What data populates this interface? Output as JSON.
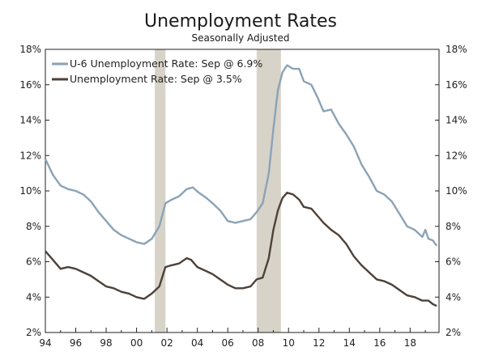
{
  "chart_data": {
    "type": "line",
    "title": "Unemployment Rates",
    "subtitle": "Seasonally Adjusted",
    "xlabel": "",
    "ylabel": "",
    "xlim": [
      1994.0,
      2019.9
    ],
    "ylim": [
      2,
      18
    ],
    "x_ticks": [
      1994,
      1996,
      1998,
      2000,
      2002,
      2004,
      2006,
      2008,
      2010,
      2012,
      2014,
      2016,
      2018
    ],
    "x_tick_labels": [
      "94",
      "96",
      "98",
      "00",
      "02",
      "04",
      "06",
      "08",
      "10",
      "12",
      "14",
      "16",
      "18"
    ],
    "y_ticks": [
      2,
      4,
      6,
      8,
      10,
      12,
      14,
      16,
      18
    ],
    "y_tick_labels": [
      "2%",
      "4%",
      "6%",
      "8%",
      "10%",
      "12%",
      "14%",
      "16%",
      "18%"
    ],
    "recessions": [
      [
        2001.2,
        2001.9
      ],
      [
        2007.9,
        2009.5
      ]
    ],
    "legend_position": "top-left",
    "grid": false,
    "series": [
      {
        "name": "U-6 Unemployment Rate: Sep @ 6.9%",
        "color": "#8aa3b6",
        "points": [
          [
            1994.0,
            11.8
          ],
          [
            1994.5,
            10.9
          ],
          [
            1995.0,
            10.3
          ],
          [
            1995.5,
            10.1
          ],
          [
            1996.0,
            10.0
          ],
          [
            1996.5,
            9.8
          ],
          [
            1997.0,
            9.4
          ],
          [
            1997.5,
            8.8
          ],
          [
            1998.0,
            8.3
          ],
          [
            1998.5,
            7.8
          ],
          [
            1999.0,
            7.5
          ],
          [
            1999.5,
            7.3
          ],
          [
            2000.0,
            7.1
          ],
          [
            2000.5,
            7.0
          ],
          [
            2001.0,
            7.3
          ],
          [
            2001.5,
            8.0
          ],
          [
            2001.9,
            9.3
          ],
          [
            2002.3,
            9.5
          ],
          [
            2002.8,
            9.7
          ],
          [
            2003.3,
            10.1
          ],
          [
            2003.7,
            10.2
          ],
          [
            2004.1,
            9.9
          ],
          [
            2004.6,
            9.6
          ],
          [
            2005.0,
            9.3
          ],
          [
            2005.5,
            8.9
          ],
          [
            2006.0,
            8.3
          ],
          [
            2006.5,
            8.2
          ],
          [
            2007.0,
            8.3
          ],
          [
            2007.5,
            8.4
          ],
          [
            2007.9,
            8.8
          ],
          [
            2008.3,
            9.3
          ],
          [
            2008.7,
            11.0
          ],
          [
            2009.0,
            13.5
          ],
          [
            2009.3,
            15.7
          ],
          [
            2009.6,
            16.7
          ],
          [
            2009.9,
            17.1
          ],
          [
            2010.3,
            16.9
          ],
          [
            2010.7,
            16.9
          ],
          [
            2011.0,
            16.2
          ],
          [
            2011.5,
            16.0
          ],
          [
            2011.9,
            15.3
          ],
          [
            2012.3,
            14.5
          ],
          [
            2012.8,
            14.6
          ],
          [
            2013.3,
            13.8
          ],
          [
            2013.8,
            13.2
          ],
          [
            2014.3,
            12.5
          ],
          [
            2014.8,
            11.5
          ],
          [
            2015.3,
            10.8
          ],
          [
            2015.8,
            10.0
          ],
          [
            2016.3,
            9.8
          ],
          [
            2016.8,
            9.4
          ],
          [
            2017.3,
            8.7
          ],
          [
            2017.8,
            8.0
          ],
          [
            2018.3,
            7.8
          ],
          [
            2018.8,
            7.4
          ],
          [
            2019.0,
            7.8
          ],
          [
            2019.2,
            7.3
          ],
          [
            2019.5,
            7.2
          ],
          [
            2019.75,
            6.9
          ]
        ]
      },
      {
        "name": "Unemployment Rate: Sep @ 3.5%",
        "color": "#4d4138",
        "points": [
          [
            1994.0,
            6.6
          ],
          [
            1994.5,
            6.1
          ],
          [
            1995.0,
            5.6
          ],
          [
            1995.5,
            5.7
          ],
          [
            1996.0,
            5.6
          ],
          [
            1996.5,
            5.4
          ],
          [
            1997.0,
            5.2
          ],
          [
            1997.5,
            4.9
          ],
          [
            1998.0,
            4.6
          ],
          [
            1998.5,
            4.5
          ],
          [
            1999.0,
            4.3
          ],
          [
            1999.5,
            4.2
          ],
          [
            2000.0,
            4.0
          ],
          [
            2000.5,
            3.9
          ],
          [
            2001.0,
            4.2
          ],
          [
            2001.5,
            4.6
          ],
          [
            2001.9,
            5.7
          ],
          [
            2002.3,
            5.8
          ],
          [
            2002.8,
            5.9
          ],
          [
            2003.3,
            6.2
          ],
          [
            2003.6,
            6.1
          ],
          [
            2004.0,
            5.7
          ],
          [
            2004.5,
            5.5
          ],
          [
            2005.0,
            5.3
          ],
          [
            2005.5,
            5.0
          ],
          [
            2006.0,
            4.7
          ],
          [
            2006.5,
            4.5
          ],
          [
            2007.0,
            4.5
          ],
          [
            2007.5,
            4.6
          ],
          [
            2007.9,
            5.0
          ],
          [
            2008.3,
            5.1
          ],
          [
            2008.7,
            6.2
          ],
          [
            2009.0,
            7.8
          ],
          [
            2009.3,
            8.9
          ],
          [
            2009.6,
            9.6
          ],
          [
            2009.9,
            9.9
          ],
          [
            2010.3,
            9.8
          ],
          [
            2010.7,
            9.5
          ],
          [
            2011.0,
            9.1
          ],
          [
            2011.5,
            9.0
          ],
          [
            2011.9,
            8.6
          ],
          [
            2012.3,
            8.2
          ],
          [
            2012.8,
            7.8
          ],
          [
            2013.3,
            7.5
          ],
          [
            2013.8,
            7.0
          ],
          [
            2014.3,
            6.3
          ],
          [
            2014.8,
            5.8
          ],
          [
            2015.3,
            5.4
          ],
          [
            2015.8,
            5.0
          ],
          [
            2016.3,
            4.9
          ],
          [
            2016.8,
            4.7
          ],
          [
            2017.3,
            4.4
          ],
          [
            2017.8,
            4.1
          ],
          [
            2018.3,
            4.0
          ],
          [
            2018.8,
            3.8
          ],
          [
            2019.2,
            3.8
          ],
          [
            2019.5,
            3.6
          ],
          [
            2019.75,
            3.5
          ]
        ]
      }
    ]
  }
}
